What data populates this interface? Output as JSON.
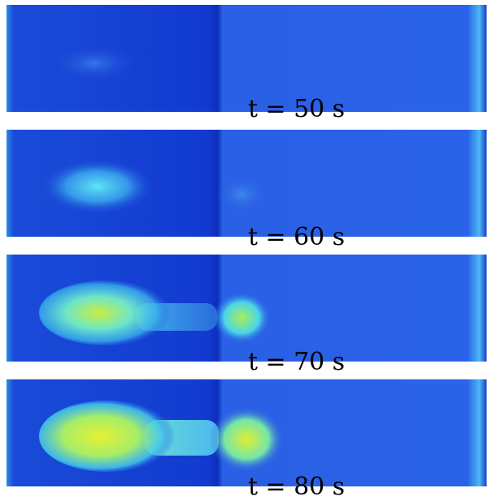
{
  "frames": [
    {
      "time_label": "t = 50 s",
      "intensity": 0.15
    },
    {
      "time_label": "t = 60 s",
      "intensity": 0.4
    },
    {
      "time_label": "t = 70 s",
      "intensity": 0.75
    },
    {
      "time_label": "t = 80 s",
      "intensity": 1.0
    }
  ],
  "colors": {
    "background_blue": "#2255e6",
    "dark_left": "#1238c8",
    "edge_cyan": "#3fb4f0",
    "blob_cyan": "#45e0f0",
    "blob_yellow": "#d6f03a"
  }
}
